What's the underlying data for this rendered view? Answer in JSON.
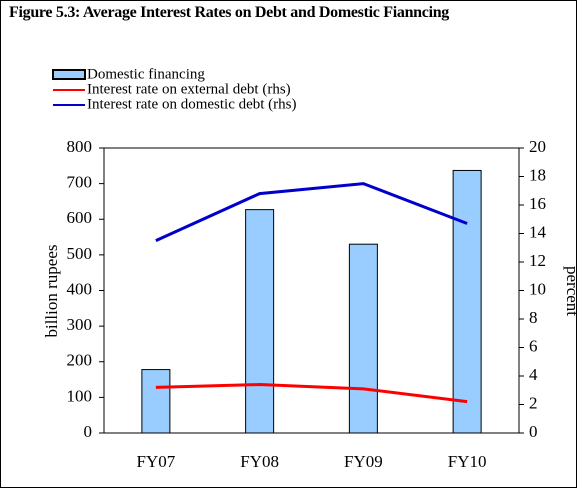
{
  "chart_data": {
    "type": "bar-line",
    "title": "Figure 5.3: Average Interest Rates on Debt and Domestic Fianncing",
    "y_label": "billion rupees",
    "y2_label": "percent",
    "categories": [
      "FY07",
      "FY08",
      "FY09",
      "FY10"
    ],
    "series": [
      {
        "name": "Domestic financing",
        "type": "bar",
        "color": "#99ccff",
        "values": [
          178,
          627,
          530,
          737
        ]
      },
      {
        "name": "Interest rate on external debt (rhs)",
        "type": "line",
        "axis": "y2",
        "color": "#ff0000",
        "values": [
          3.2,
          3.4,
          3.1,
          2.2
        ]
      },
      {
        "name": "Interest rate on domestic debt (rhs)",
        "type": "line",
        "axis": "y2",
        "color": "#0000cc",
        "values": [
          13.5,
          16.8,
          17.5,
          14.7
        ]
      }
    ],
    "ylim": [
      0,
      800
    ],
    "yticks": [
      0,
      100,
      200,
      300,
      400,
      500,
      600,
      700,
      800
    ],
    "y2lim": [
      0,
      20
    ],
    "y2ticks": [
      0,
      2,
      4,
      6,
      8,
      10,
      12,
      14,
      16,
      18,
      20
    ],
    "grid": false
  }
}
